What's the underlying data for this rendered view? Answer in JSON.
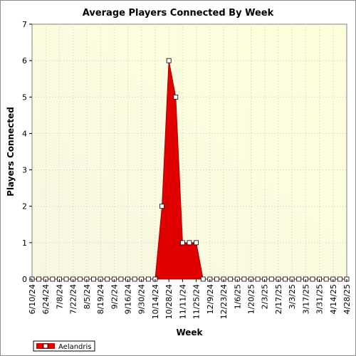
{
  "chart_data": {
    "type": "area",
    "title": "Average Players Connected By Week",
    "xlabel": "Week",
    "ylabel": "Players Connected",
    "ylim": [
      0,
      7
    ],
    "yticks": [
      0,
      1,
      2,
      3,
      4,
      5,
      6,
      7
    ],
    "grid": true,
    "legend_position": "bottom-left",
    "categories": [
      "6/10/24",
      "6/17/24",
      "6/24/24",
      "7/1/24",
      "7/8/24",
      "7/15/24",
      "7/22/24",
      "7/29/24",
      "8/5/24",
      "8/12/24",
      "8/19/24",
      "8/26/24",
      "9/2/24",
      "9/9/24",
      "9/16/24",
      "9/23/24",
      "9/30/24",
      "10/7/24",
      "10/14/24",
      "10/21/24",
      "10/28/24",
      "11/4/24",
      "11/11/24",
      "11/18/24",
      "11/25/24",
      "12/2/24",
      "12/9/24",
      "12/16/24",
      "12/23/24",
      "12/30/24",
      "1/6/25",
      "1/13/25",
      "1/20/25",
      "1/27/25",
      "2/3/25",
      "2/10/25",
      "2/17/25",
      "2/24/25",
      "3/3/25",
      "3/10/25",
      "3/17/25",
      "3/24/25",
      "3/31/25",
      "4/7/25",
      "4/14/25",
      "4/21/25",
      "4/28/25"
    ],
    "tick_labels": [
      "6/10/24",
      "6/24/24",
      "7/8/24",
      "7/22/24",
      "8/5/24",
      "8/19/24",
      "9/2/24",
      "9/16/24",
      "9/30/24",
      "10/14/24",
      "10/28/24",
      "11/11/24",
      "11/25/24",
      "12/9/24",
      "12/23/24",
      "1/6/25",
      "1/20/25",
      "2/3/25",
      "2/17/25",
      "3/3/25",
      "3/17/25",
      "3/31/25",
      "4/14/25",
      "4/28/25"
    ],
    "series": [
      {
        "name": "Aelandris",
        "color": "#e00000",
        "values": [
          0,
          0,
          0,
          0,
          0,
          0,
          0,
          0,
          0,
          0,
          0,
          0,
          0,
          0,
          0,
          0,
          0,
          0,
          0,
          2,
          6,
          5,
          1,
          1,
          1,
          0,
          0,
          0,
          0,
          0,
          0,
          0,
          0,
          0,
          0,
          0,
          0,
          0,
          0,
          0,
          0,
          0,
          0,
          0,
          0,
          0,
          0
        ]
      }
    ]
  }
}
